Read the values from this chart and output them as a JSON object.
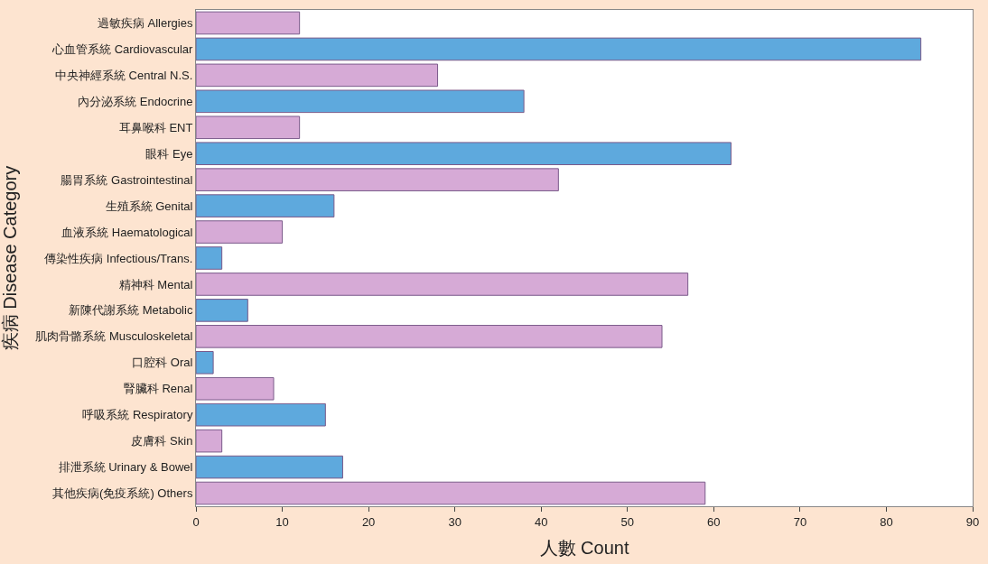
{
  "chart_data": {
    "type": "bar",
    "orientation": "horizontal",
    "xlabel": "人數 Count",
    "ylabel": "疾病 Disease Category",
    "categories": [
      "過敏疾病 Allergies",
      "心血管系統 Cardiovascular",
      "中央神經系統 Central N.S.",
      "內分泌系統 Endocrine",
      "耳鼻喉科 ENT",
      "眼科 Eye",
      "腸胃系統 Gastrointestinal",
      "生殖系統 Genital",
      "血液系統 Haematological",
      "傳染性疾病 Infectious/Trans.",
      "精神科 Mental",
      "新陳代謝系統 Metabolic",
      "肌肉骨骼系統 Musculoskeletal",
      "口腔科 Oral",
      "腎臟科 Renal",
      "呼吸系統 Respiratory",
      "皮膚科 Skin",
      "排泄系統 Urinary & Bowel",
      "其他疾病(免疫系統) Others"
    ],
    "values": [
      12,
      84,
      28,
      38,
      12,
      62,
      42,
      16,
      10,
      3,
      57,
      6,
      54,
      2,
      9,
      15,
      3,
      17,
      59
    ],
    "colors": [
      "#d6aad6",
      "#5ea9dd",
      "#d6aad6",
      "#5ea9dd",
      "#d6aad6",
      "#5ea9dd",
      "#d6aad6",
      "#5ea9dd",
      "#d6aad6",
      "#5ea9dd",
      "#d6aad6",
      "#5ea9dd",
      "#d6aad6",
      "#5ea9dd",
      "#d6aad6",
      "#5ea9dd",
      "#d6aad6",
      "#5ea9dd",
      "#d6aad6"
    ],
    "xlim": [
      0,
      90
    ],
    "xticks": [
      0,
      10,
      20,
      30,
      40,
      50,
      60,
      70,
      80,
      90
    ]
  }
}
